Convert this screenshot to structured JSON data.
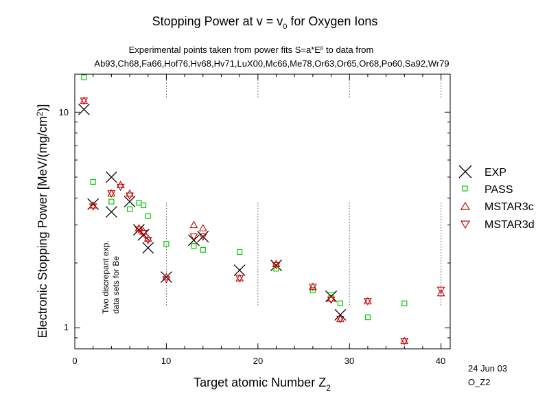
{
  "chart_data": {
    "type": "scatter",
    "title_main": "Stopping Power at v = v",
    "title_sub0": "0",
    "title_end": " for Oxygen Ions",
    "subtitle_main": "Experimental points taken from power fits S=a*E",
    "subtitle_sup": "p",
    "subtitle_end": " to data from",
    "references": "Ab93,Ch68,Fa66,Hof76,Hv68,Hv71,LuX00,Mc66,Me78,Or63,Or65,Or68,Po60,Sa92,Wr79",
    "xlabel_main": "Target atomic Number Z",
    "xlabel_sub": "2",
    "ylabel_main": "Electronic Stopping Power [MeV/(mg/cm",
    "ylabel_sup": "2",
    "ylabel_end": ")]",
    "xlim": [
      0,
      41
    ],
    "ylim": [
      0.8,
      15
    ],
    "yscale": "log",
    "x_ticks": [
      "0",
      "10",
      "20",
      "30",
      "40"
    ],
    "y_ticks": [
      "1",
      "10"
    ],
    "annotation": [
      "Two discrepant exp.",
      "data sets for Be"
    ],
    "stamp_date": "24 Jun 03",
    "stamp_file": "O_Z2",
    "series": [
      {
        "name": "EXP",
        "marker": "x",
        "color": "#000000",
        "points": [
          [
            1,
            10.3
          ],
          [
            2,
            3.75
          ],
          [
            4,
            5.0
          ],
          [
            4,
            3.45
          ],
          [
            6,
            3.85
          ],
          [
            7,
            2.85
          ],
          [
            7.5,
            2.7
          ],
          [
            8,
            2.35
          ],
          [
            10,
            1.72
          ],
          [
            13,
            2.55
          ],
          [
            14,
            2.65
          ],
          [
            18,
            1.85
          ],
          [
            22,
            1.95
          ],
          [
            28,
            1.4
          ],
          [
            29,
            1.15
          ]
        ]
      },
      {
        "name": "PASS",
        "marker": "square",
        "color": "#00cc00",
        "points": [
          [
            1,
            14.5
          ],
          [
            2,
            4.75
          ],
          [
            4,
            3.85
          ],
          [
            6,
            3.55
          ],
          [
            7,
            3.8
          ],
          [
            7.5,
            3.7
          ],
          [
            8,
            3.3
          ],
          [
            10,
            2.45
          ],
          [
            13,
            2.4
          ],
          [
            14,
            2.3
          ],
          [
            18,
            2.25
          ],
          [
            22,
            1.88
          ],
          [
            26,
            1.5
          ],
          [
            28,
            1.42
          ],
          [
            29,
            1.3
          ],
          [
            32,
            1.12
          ],
          [
            36,
            1.3
          ]
        ]
      },
      {
        "name": "MSTAR3c",
        "marker": "triangle-up",
        "color": "#cc0000",
        "points": [
          [
            1,
            11.3
          ],
          [
            2,
            3.7
          ],
          [
            4,
            4.2
          ],
          [
            5,
            4.6
          ],
          [
            6,
            4.2
          ],
          [
            7,
            2.9
          ],
          [
            7.5,
            2.8
          ],
          [
            8,
            2.6
          ],
          [
            10,
            1.72
          ],
          [
            13,
            3.0
          ],
          [
            14,
            2.9
          ],
          [
            18,
            1.7
          ],
          [
            22,
            1.98
          ],
          [
            26,
            1.55
          ],
          [
            28,
            1.37
          ],
          [
            29,
            1.1
          ],
          [
            32,
            1.33
          ],
          [
            36,
            0.87
          ],
          [
            40,
            1.45
          ]
        ]
      },
      {
        "name": "MSTAR3d",
        "marker": "triangle-down",
        "color": "#cc0000",
        "points": [
          [
            1,
            11.3
          ],
          [
            2,
            3.65
          ],
          [
            4,
            4.2
          ],
          [
            5,
            4.5
          ],
          [
            6,
            4.1
          ],
          [
            7,
            2.85
          ],
          [
            7.5,
            2.75
          ],
          [
            8,
            2.55
          ],
          [
            10,
            1.68
          ],
          [
            13,
            2.65
          ],
          [
            14,
            2.65
          ],
          [
            18,
            1.7
          ],
          [
            22,
            1.95
          ],
          [
            26,
            1.55
          ],
          [
            28,
            1.35
          ],
          [
            29,
            1.1
          ],
          [
            32,
            1.33
          ],
          [
            36,
            0.87
          ],
          [
            40,
            1.5
          ]
        ]
      }
    ]
  }
}
